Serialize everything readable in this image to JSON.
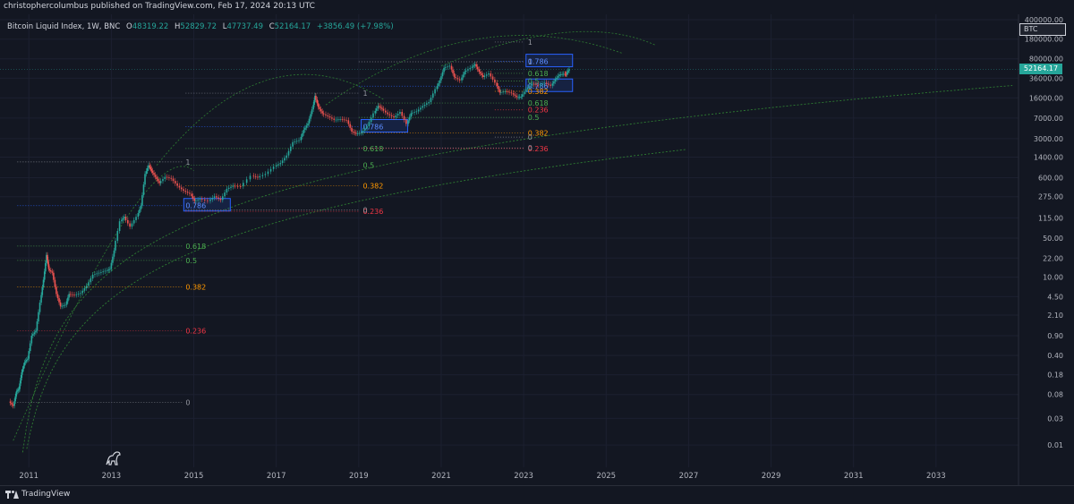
{
  "publisher": "christophercolumbus published on TradingView.com, Feb 17, 2024 20:13 UTC",
  "brand": "TradingView",
  "ticker_badge": "BTC",
  "price_badge": "52164.17",
  "legend": {
    "title": "Bitcoin Liquid Index, 1W, BNC",
    "open_label": "O",
    "open": "48319.22",
    "high_label": "H",
    "high": "52829.72",
    "low_label": "L",
    "low": "47737.49",
    "close_label": "C",
    "close": "52164.17",
    "change": "+3856.49 (+7.98%)"
  },
  "colors": {
    "background": "#131722",
    "up": "#26a69a",
    "down": "#ef5350",
    "fib_1": "#9598a1",
    "fib_0786": "#2962ff",
    "fib_0618": "#4caf50",
    "fib_05": "#4caf50",
    "fib_0382": "#ff9800",
    "fib_0236": "#f23645",
    "fib_0": "#9598a1",
    "arc": "#2e7d32"
  },
  "chart_data": {
    "type": "candlestick",
    "title": "Bitcoin Liquid Index, 1W, BNC",
    "y_scale": "log",
    "ylim": [
      0.004,
      500000
    ],
    "xlim": [
      2010.3,
      2035.0
    ],
    "y_ticks": [
      "400000.00",
      "180000.00",
      "80000.00",
      "36000.00",
      "16000.00",
      "7000.00",
      "3000.00",
      "1400.00",
      "600.00",
      "275.00",
      "115.00",
      "50.00",
      "22.00",
      "10.00",
      "4.50",
      "2.10",
      "0.90",
      "0.40",
      "0.18",
      "0.08",
      "0.03",
      "0.01"
    ],
    "x_ticks": [
      "2011",
      "2013",
      "2015",
      "2017",
      "2019",
      "2021",
      "2023",
      "2025",
      "2027",
      "2029",
      "2031",
      "2033"
    ],
    "last_price": 52164.17,
    "price_path": [
      [
        2010.55,
        0.06
      ],
      [
        2010.65,
        0.05
      ],
      [
        2010.72,
        0.09
      ],
      [
        2010.78,
        0.1
      ],
      [
        2010.85,
        0.2
      ],
      [
        2010.92,
        0.3
      ],
      [
        2011.0,
        0.35
      ],
      [
        2011.1,
        0.9
      ],
      [
        2011.2,
        1.1
      ],
      [
        2011.3,
        3.5
      ],
      [
        2011.38,
        9
      ],
      [
        2011.45,
        25
      ],
      [
        2011.5,
        14
      ],
      [
        2011.6,
        12
      ],
      [
        2011.7,
        5
      ],
      [
        2011.8,
        3
      ],
      [
        2011.92,
        3.2
      ],
      [
        2012.0,
        5
      ],
      [
        2012.15,
        4.8
      ],
      [
        2012.3,
        5.2
      ],
      [
        2012.45,
        7
      ],
      [
        2012.6,
        11
      ],
      [
        2012.75,
        12
      ],
      [
        2012.9,
        13
      ],
      [
        2013.0,
        14
      ],
      [
        2013.1,
        30
      ],
      [
        2013.25,
        100
      ],
      [
        2013.35,
        120
      ],
      [
        2013.5,
        80
      ],
      [
        2013.65,
        120
      ],
      [
        2013.75,
        190
      ],
      [
        2013.85,
        700
      ],
      [
        2013.93,
        1000
      ],
      [
        2014.0,
        800
      ],
      [
        2014.1,
        620
      ],
      [
        2014.2,
        480
      ],
      [
        2014.35,
        620
      ],
      [
        2014.5,
        580
      ],
      [
        2014.65,
        430
      ],
      [
        2014.8,
        350
      ],
      [
        2014.95,
        310
      ],
      [
        2015.05,
        230
      ],
      [
        2015.2,
        250
      ],
      [
        2015.4,
        230
      ],
      [
        2015.55,
        280
      ],
      [
        2015.7,
        240
      ],
      [
        2015.85,
        380
      ],
      [
        2016.0,
        430
      ],
      [
        2016.2,
        420
      ],
      [
        2016.45,
        650
      ],
      [
        2016.6,
        610
      ],
      [
        2016.8,
        700
      ],
      [
        2017.0,
        950
      ],
      [
        2017.15,
        1100
      ],
      [
        2017.3,
        1500
      ],
      [
        2017.45,
        2600
      ],
      [
        2017.6,
        2800
      ],
      [
        2017.7,
        4300
      ],
      [
        2017.8,
        5600
      ],
      [
        2017.9,
        10000
      ],
      [
        2017.96,
        17500
      ],
      [
        2018.05,
        11000
      ],
      [
        2018.15,
        8500
      ],
      [
        2018.3,
        7500
      ],
      [
        2018.45,
        6500
      ],
      [
        2018.6,
        6700
      ],
      [
        2018.75,
        6400
      ],
      [
        2018.87,
        4000
      ],
      [
        2018.97,
        3700
      ],
      [
        2019.1,
        3800
      ],
      [
        2019.25,
        5000
      ],
      [
        2019.4,
        8500
      ],
      [
        2019.5,
        11500
      ],
      [
        2019.6,
        10200
      ],
      [
        2019.75,
        8200
      ],
      [
        2019.9,
        7200
      ],
      [
        2020.05,
        9000
      ],
      [
        2020.2,
        5500
      ],
      [
        2020.3,
        8500
      ],
      [
        2020.45,
        9200
      ],
      [
        2020.6,
        11500
      ],
      [
        2020.75,
        13500
      ],
      [
        2020.9,
        23000
      ],
      [
        2021.0,
        33000
      ],
      [
        2021.1,
        55000
      ],
      [
        2021.25,
        60000
      ],
      [
        2021.35,
        38000
      ],
      [
        2021.5,
        33000
      ],
      [
        2021.6,
        47000
      ],
      [
        2021.75,
        55000
      ],
      [
        2021.85,
        64000
      ],
      [
        2021.95,
        47000
      ],
      [
        2022.05,
        38000
      ],
      [
        2022.2,
        44000
      ],
      [
        2022.35,
        30000
      ],
      [
        2022.45,
        20000
      ],
      [
        2022.6,
        21000
      ],
      [
        2022.75,
        19500
      ],
      [
        2022.87,
        16500
      ],
      [
        2022.97,
        16800
      ],
      [
        2023.1,
        23000
      ],
      [
        2023.25,
        28500
      ],
      [
        2023.4,
        27000
      ],
      [
        2023.55,
        30000
      ],
      [
        2023.7,
        26500
      ],
      [
        2023.8,
        34500
      ],
      [
        2023.9,
        42000
      ],
      [
        2024.0,
        43000
      ],
      [
        2024.05,
        42500
      ],
      [
        2024.13,
        52164
      ]
    ],
    "fib_sets": [
      {
        "x_start": 2010.72,
        "label_x": 2014.8,
        "level_labels": [
          "1",
          "0.786",
          "0.618",
          "0.5",
          "0.382",
          "0.236",
          "0"
        ],
        "level_prices": [
          1150,
          190,
          36,
          20,
          6.7,
          1.1,
          0.058
        ]
      },
      {
        "x_start": 2014.8,
        "label_x": 2019.1,
        "level_labels": [
          "1",
          "0.786",
          "0.618",
          "0.5",
          "0.382",
          "0.236",
          "0"
        ],
        "level_prices": [
          19500,
          4900,
          2000,
          1000,
          430,
          150,
          160
        ]
      },
      {
        "x_start": 2019.0,
        "label_x": 2023.1,
        "level_labels": [
          "1",
          "0.786",
          "0.618",
          "0.5",
          "0.382",
          "0.236",
          "0"
        ],
        "level_prices": [
          71000,
          26000,
          13000,
          7200,
          3800,
          2000,
          2050
        ]
      },
      {
        "x_start": 2022.3,
        "label_x": 2023.1,
        "level_labels": [
          "1",
          "0.786",
          "0.618",
          "0.5",
          "0.382",
          "0.236",
          "0"
        ],
        "level_prices": [
          160000,
          72000,
          44000,
          32000,
          21000,
          9800,
          3200
        ]
      }
    ]
  }
}
